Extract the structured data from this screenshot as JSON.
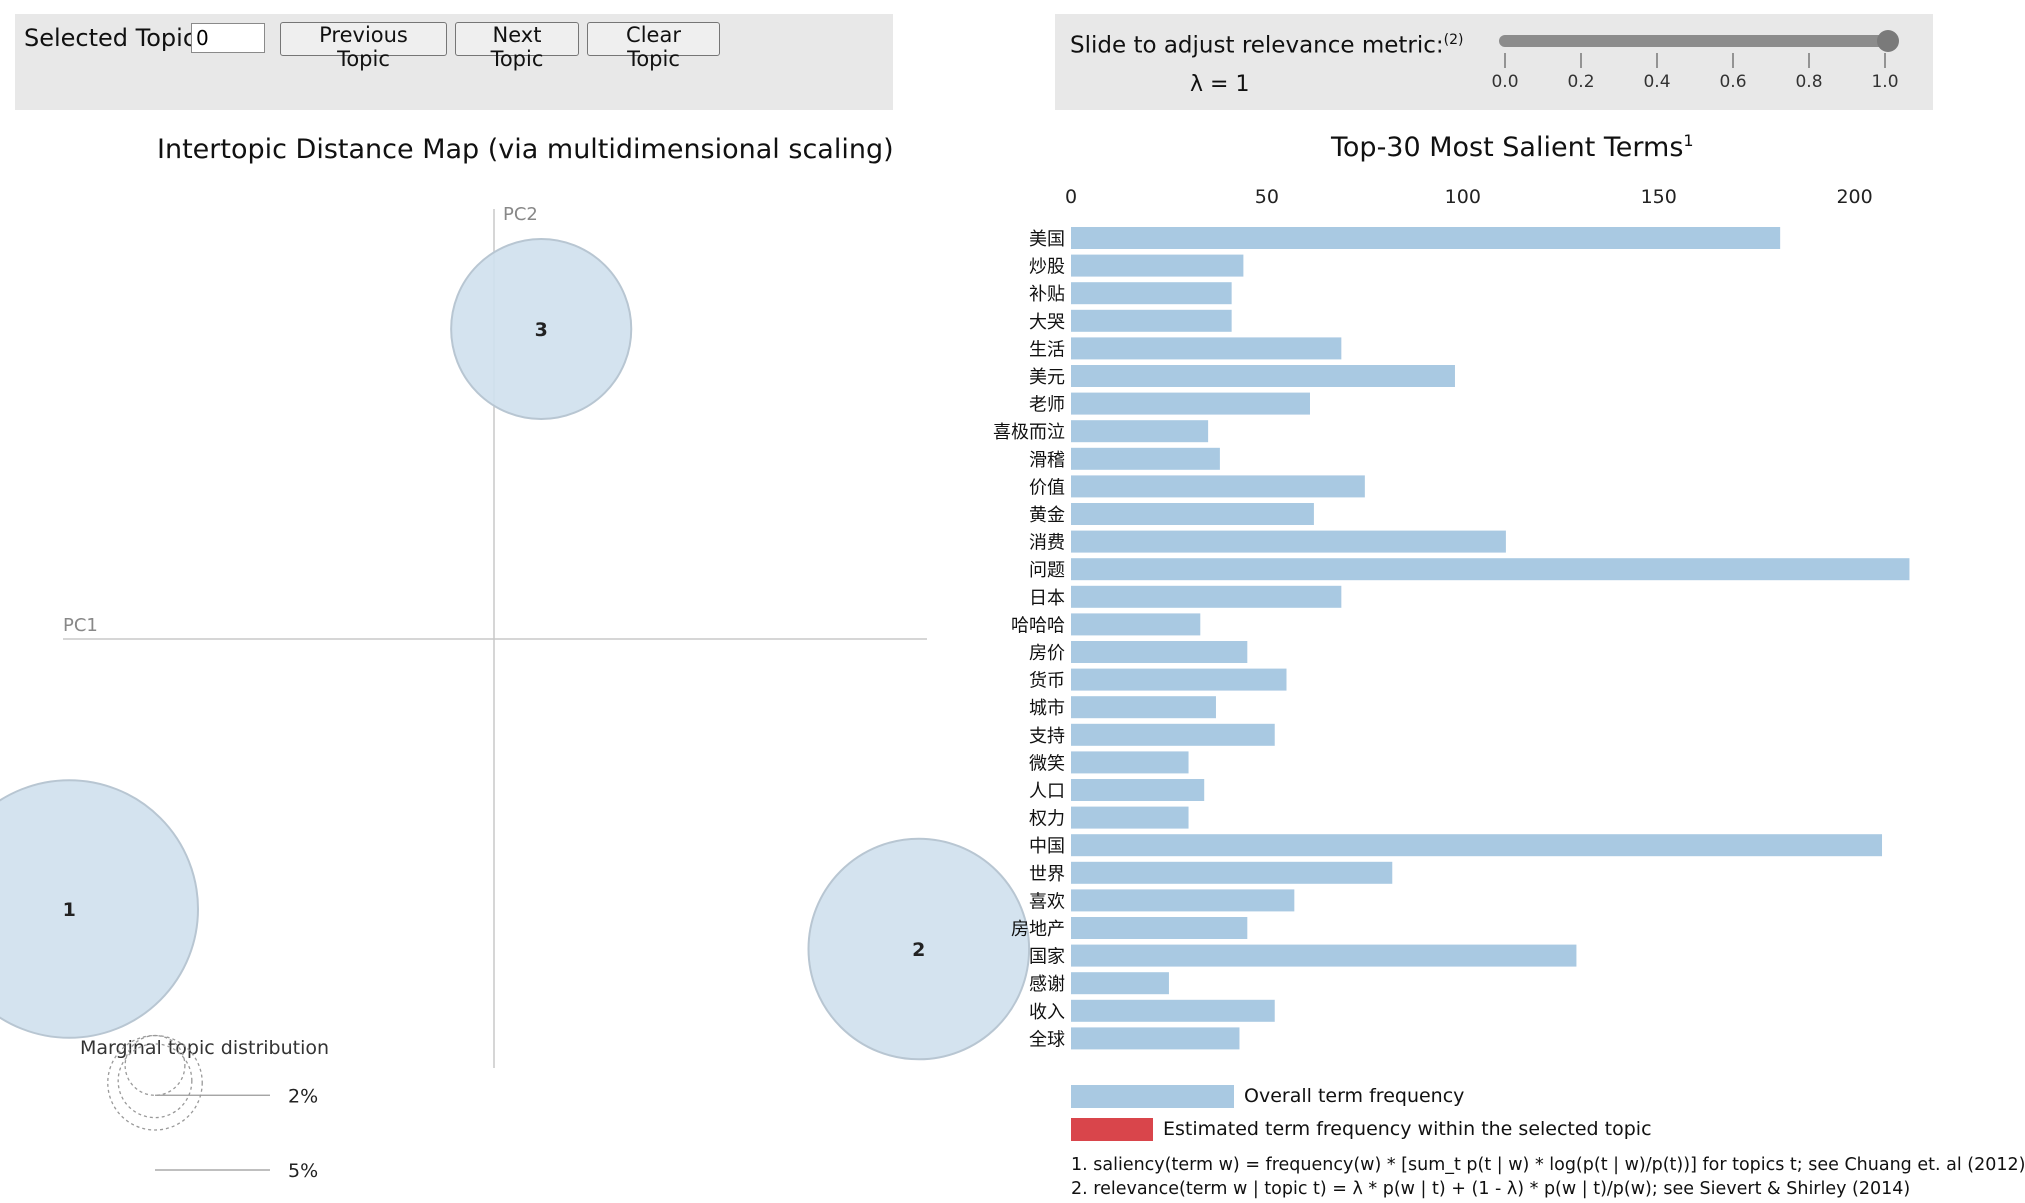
{
  "controls": {
    "selected_topic_label": "Selected Topic:",
    "selected_topic_value": "0",
    "previous_label": "Previous Topic",
    "next_label": "Next Topic",
    "clear_label": "Clear Topic",
    "slider_label": "Slide to adjust relevance metric:",
    "slider_footnote": "(2)",
    "lambda_text": "λ = 1",
    "lambda_value": 1.0,
    "slider_ticks": [
      "0.0",
      "0.2",
      "0.4",
      "0.6",
      "0.8",
      "1.0"
    ]
  },
  "colors": {
    "bubble_fill": "#cfe0ed",
    "bubble_stroke": "#b8c6d2",
    "overall_bar": "#a9c9e2",
    "topic_bar": "#d9454b",
    "panel_bg": "#e8e8e8"
  },
  "chart_data": [
    {
      "type": "scatter",
      "title": "Intertopic Distance Map (via multidimensional scaling)",
      "xlabel": "PC1",
      "ylabel": "PC2",
      "topics": [
        {
          "label": "1",
          "pc1": -0.36,
          "pc2": -0.27,
          "share_pct": 45
        },
        {
          "label": "2",
          "pc1": 0.36,
          "pc2": -0.31,
          "share_pct": 33
        },
        {
          "label": "3",
          "pc1": 0.04,
          "pc2": 0.31,
          "share_pct": 22
        }
      ],
      "marginal_title": "Marginal topic distribution",
      "marginal_legend": [
        {
          "label": "2%",
          "pct": 2
        },
        {
          "label": "5%",
          "pct": 5
        }
      ]
    },
    {
      "type": "bar",
      "orientation": "horizontal",
      "title": "Top-30 Most Salient Terms",
      "title_footnote": "1",
      "xlim": [
        0,
        220
      ],
      "xticks": [
        0,
        50,
        100,
        150,
        200
      ],
      "categories": [
        "美国",
        "炒股",
        "补贴",
        "大哭",
        "生活",
        "美元",
        "老师",
        "喜极而泣",
        "滑稽",
        "价值",
        "黄金",
        "消费",
        "问题",
        "日本",
        "哈哈哈",
        "房价",
        "货币",
        "城市",
        "支持",
        "微笑",
        "人口",
        "权力",
        "中国",
        "世界",
        "喜欢",
        "房地产",
        "国家",
        "感谢",
        "收入",
        "全球"
      ],
      "series": [
        {
          "name": "Overall term frequency",
          "values": [
            181,
            44,
            41,
            41,
            69,
            98,
            61,
            35,
            38,
            75,
            62,
            111,
            214,
            69,
            33,
            45,
            55,
            37,
            52,
            30,
            34,
            30,
            207,
            82,
            57,
            45,
            129,
            25,
            52,
            43
          ]
        },
        {
          "name": "Estimated term frequency within the selected topic",
          "values": [
            0,
            0,
            0,
            0,
            0,
            0,
            0,
            0,
            0,
            0,
            0,
            0,
            0,
            0,
            0,
            0,
            0,
            0,
            0,
            0,
            0,
            0,
            0,
            0,
            0,
            0,
            0,
            0,
            0,
            0
          ]
        }
      ]
    }
  ],
  "legend": {
    "overall": "Overall term frequency",
    "topic": "Estimated term frequency within the selected topic"
  },
  "footnotes": {
    "saliency": "1. saliency(term w) = frequency(w) * [sum_t p(t | w) * log(p(t | w)/p(t))] for topics t; see Chuang et. al (2012)",
    "relevance": "2. relevance(term w | topic t) = λ * p(w | t) + (1 - λ) * p(w | t)/p(w); see Sievert & Shirley (2014)"
  }
}
